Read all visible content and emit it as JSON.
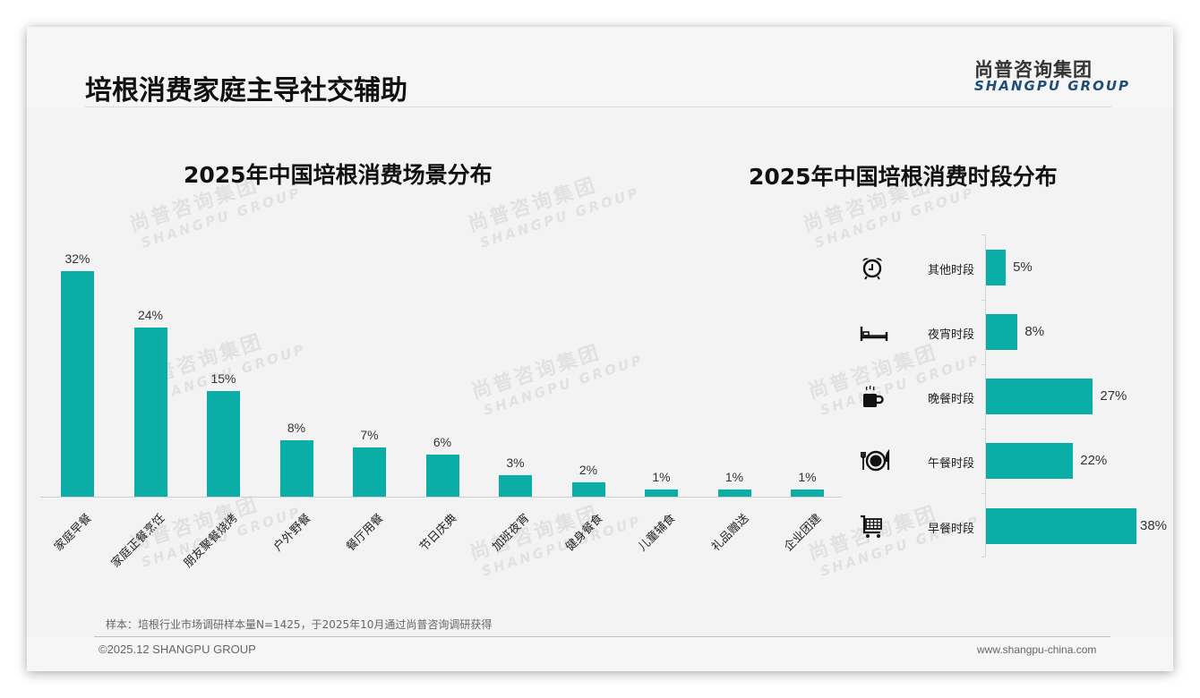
{
  "header": {
    "title": "培根消费家庭主导社交辅助",
    "logo_cn": "尚普咨询集团",
    "logo_en": "SHANGPU GROUP"
  },
  "watermark": {
    "cn": "尚普咨询集团",
    "en": "SHANGPU GROUP"
  },
  "left_chart": {
    "title": "2025年中国培根消费场景分布"
  },
  "right_chart": {
    "title": "2025年中国培根消费时段分布"
  },
  "chart_data": [
    {
      "type": "bar",
      "title": "2025年中国培根消费场景分布",
      "xlabel": "",
      "ylabel": "",
      "categories": [
        "家庭早餐",
        "家庭正餐烹饪",
        "朋友聚餐烧烤",
        "户外野餐",
        "餐厅用餐",
        "节日庆典",
        "加班夜宵",
        "健身餐食",
        "儿童辅食",
        "礼品赠送",
        "企业团建"
      ],
      "values": [
        32,
        24,
        15,
        8,
        7,
        6,
        3,
        2,
        1,
        1,
        1
      ],
      "value_labels": [
        "32%",
        "24%",
        "15%",
        "8%",
        "7%",
        "6%",
        "3%",
        "2%",
        "1%",
        "1%",
        "1%"
      ],
      "unit": "%",
      "color": "#0aaea6",
      "grid": false,
      "legend": null
    },
    {
      "type": "bar",
      "orientation": "horizontal",
      "title": "2025年中国培根消费时段分布",
      "categories": [
        "其他时段",
        "夜宵时段",
        "晚餐时段",
        "午餐时段",
        "早餐时段"
      ],
      "values": [
        5,
        8,
        27,
        22,
        38
      ],
      "value_labels": [
        "5%",
        "8%",
        "27%",
        "22%",
        "38%"
      ],
      "icons": [
        "alarm-clock-icon",
        "bed-icon",
        "coffee-mug-icon",
        "plate-cutlery-icon",
        "shopping-cart-icon"
      ],
      "unit": "%",
      "color": "#0aaea6",
      "grid": false,
      "legend": null
    }
  ],
  "footer": {
    "note": "样本：培根行业市场调研样本量N=1425，于2025年10月通过尚普咨询调研获得",
    "copyright": "©2025.12 SHANGPU GROUP",
    "website": "www.shangpu-china.com"
  }
}
